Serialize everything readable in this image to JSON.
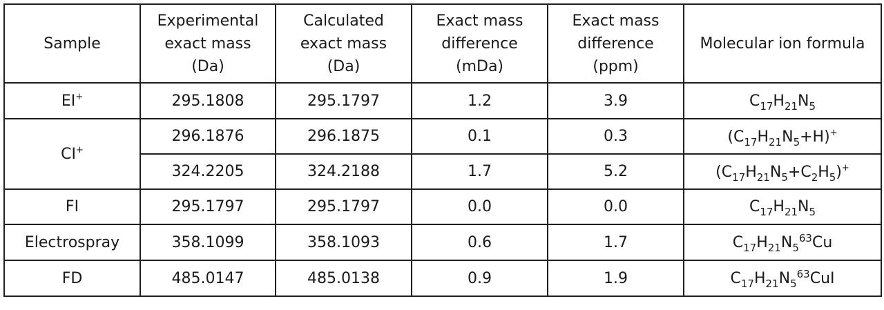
{
  "table": {
    "headers": [
      [
        "Sample"
      ],
      [
        "Experimental",
        "exact mass",
        "(Da)"
      ],
      [
        "Calculated",
        "exact mass",
        "(Da)"
      ],
      [
        "Exact mass",
        "difference",
        "(mDa)"
      ],
      [
        "Exact mass",
        "difference",
        "(ppm)"
      ],
      [
        "Molecular ion formula"
      ]
    ],
    "samples": {
      "ei": "EI",
      "ci": "CI",
      "fi": "FI",
      "es": "Electrospray",
      "fd": "FD"
    },
    "charge_sign": "+",
    "rows": [
      {
        "exp": "295.1808",
        "calc": "295.1797",
        "mda": "1.2",
        "ppm": "3.9"
      },
      {
        "exp": "296.1876",
        "calc": "296.1875",
        "mda": "0.1",
        "ppm": "0.3"
      },
      {
        "exp": "324.2205",
        "calc": "324.2188",
        "mda": "1.7",
        "ppm": "5.2"
      },
      {
        "exp": "295.1797",
        "calc": "295.1797",
        "mda": "0.0",
        "ppm": "0.0"
      },
      {
        "exp": "358.1099",
        "calc": "358.1093",
        "mda": "0.6",
        "ppm": "1.7"
      },
      {
        "exp": "485.0147",
        "calc": "485.0138",
        "mda": "0.9",
        "ppm": "1.9"
      }
    ],
    "formula": {
      "C": "C",
      "H": "H",
      "N": "N",
      "Cu": "Cu",
      "CuI": "CuI",
      "n17": "17",
      "n21": "21",
      "n5": "5",
      "n2": "2",
      "iso63": "63",
      "open": "(",
      "close": ")",
      "plus": "+",
      "ionH": "H"
    }
  }
}
